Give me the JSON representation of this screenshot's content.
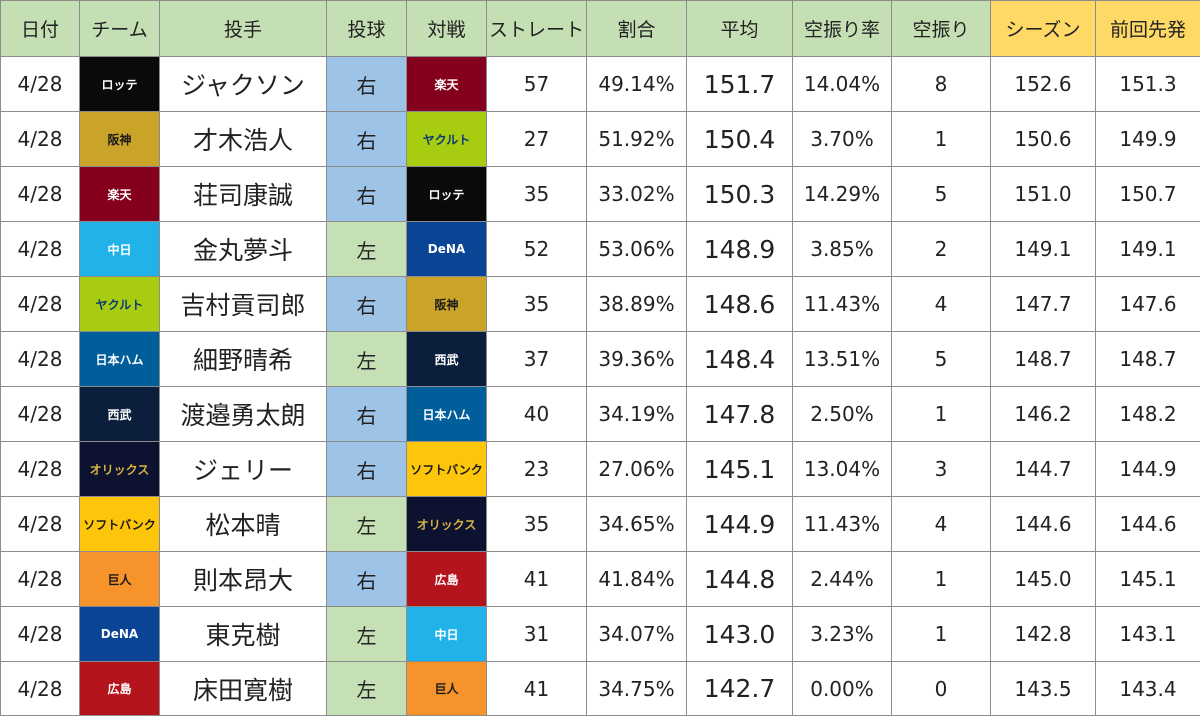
{
  "headers": [
    "日付",
    "チーム",
    "投手",
    "投球",
    "対戦",
    "ストレート",
    "割合",
    "平均",
    "空振り率",
    "空振り",
    "シーズン",
    "前回先発"
  ],
  "highlight_headers": [
    10,
    11
  ],
  "colors": {
    "header_bg": "#c5dfb4",
    "header_highlight_bg": "#fed966",
    "right_hand_bg": "#9dc3e6",
    "left_hand_bg": "#c5e0b4",
    "border": "#8c8c8c"
  },
  "teams": {
    "ロッテ": {
      "bg": "#0a0a0a",
      "fg": "#ffffff"
    },
    "阪神": {
      "bg": "#c9a429",
      "fg": "#1a1a1a"
    },
    "楽天": {
      "bg": "#85001c",
      "fg": "#ffffff"
    },
    "中日": {
      "bg": "#22b2ea",
      "fg": "#ffffff"
    },
    "ヤクルト": {
      "bg": "#a8cc10",
      "fg": "#0b3a75"
    },
    "日本ハム": {
      "bg": "#005e9a",
      "fg": "#ffffff"
    },
    "西武": {
      "bg": "#0b1f3c",
      "fg": "#ffffff"
    },
    "オリックス": {
      "bg": "#0c1230",
      "fg": "#d9b441"
    },
    "ソフトバンク": {
      "bg": "#fdc60a",
      "fg": "#1a1a1a"
    },
    "巨人": {
      "bg": "#f6932b",
      "fg": "#1a1a1a"
    },
    "DeNA": {
      "bg": "#0a4595",
      "fg": "#ffffff"
    },
    "広島": {
      "bg": "#b4141c",
      "fg": "#ffffff"
    }
  },
  "rows": [
    {
      "date": "4/28",
      "team": "ロッテ",
      "pitcher": "ジャクソン",
      "hand": "右",
      "opponent": "楽天",
      "straight": "57",
      "ratio": "49.14%",
      "avg": "151.7",
      "whiff_rate": "14.04%",
      "whiffs": "8",
      "season": "152.6",
      "prev": "151.3"
    },
    {
      "date": "4/28",
      "team": "阪神",
      "pitcher": "才木浩人",
      "hand": "右",
      "opponent": "ヤクルト",
      "straight": "27",
      "ratio": "51.92%",
      "avg": "150.4",
      "whiff_rate": "3.70%",
      "whiffs": "1",
      "season": "150.6",
      "prev": "149.9"
    },
    {
      "date": "4/28",
      "team": "楽天",
      "pitcher": "荘司康誠",
      "hand": "右",
      "opponent": "ロッテ",
      "straight": "35",
      "ratio": "33.02%",
      "avg": "150.3",
      "whiff_rate": "14.29%",
      "whiffs": "5",
      "season": "151.0",
      "prev": "150.7"
    },
    {
      "date": "4/28",
      "team": "中日",
      "pitcher": "金丸夢斗",
      "hand": "左",
      "opponent": "DeNA",
      "straight": "52",
      "ratio": "53.06%",
      "avg": "148.9",
      "whiff_rate": "3.85%",
      "whiffs": "2",
      "season": "149.1",
      "prev": "149.1"
    },
    {
      "date": "4/28",
      "team": "ヤクルト",
      "pitcher": "吉村貢司郎",
      "hand": "右",
      "opponent": "阪神",
      "straight": "35",
      "ratio": "38.89%",
      "avg": "148.6",
      "whiff_rate": "11.43%",
      "whiffs": "4",
      "season": "147.7",
      "prev": "147.6"
    },
    {
      "date": "4/28",
      "team": "日本ハム",
      "pitcher": "細野晴希",
      "hand": "左",
      "opponent": "西武",
      "straight": "37",
      "ratio": "39.36%",
      "avg": "148.4",
      "whiff_rate": "13.51%",
      "whiffs": "5",
      "season": "148.7",
      "prev": "148.7"
    },
    {
      "date": "4/28",
      "team": "西武",
      "pitcher": "渡邉勇太朗",
      "hand": "右",
      "opponent": "日本ハム",
      "straight": "40",
      "ratio": "34.19%",
      "avg": "147.8",
      "whiff_rate": "2.50%",
      "whiffs": "1",
      "season": "146.2",
      "prev": "148.2"
    },
    {
      "date": "4/28",
      "team": "オリックス",
      "pitcher": "ジェリー",
      "hand": "右",
      "opponent": "ソフトバンク",
      "straight": "23",
      "ratio": "27.06%",
      "avg": "145.1",
      "whiff_rate": "13.04%",
      "whiffs": "3",
      "season": "144.7",
      "prev": "144.9"
    },
    {
      "date": "4/28",
      "team": "ソフトバンク",
      "pitcher": "松本晴",
      "hand": "左",
      "opponent": "オリックス",
      "straight": "35",
      "ratio": "34.65%",
      "avg": "144.9",
      "whiff_rate": "11.43%",
      "whiffs": "4",
      "season": "144.6",
      "prev": "144.6"
    },
    {
      "date": "4/28",
      "team": "巨人",
      "pitcher": "則本昂大",
      "hand": "右",
      "opponent": "広島",
      "straight": "41",
      "ratio": "41.84%",
      "avg": "144.8",
      "whiff_rate": "2.44%",
      "whiffs": "1",
      "season": "145.0",
      "prev": "145.1"
    },
    {
      "date": "4/28",
      "team": "DeNA",
      "pitcher": "東克樹",
      "hand": "左",
      "opponent": "中日",
      "straight": "31",
      "ratio": "34.07%",
      "avg": "143.0",
      "whiff_rate": "3.23%",
      "whiffs": "1",
      "season": "142.8",
      "prev": "143.1"
    },
    {
      "date": "4/28",
      "team": "広島",
      "pitcher": "床田寛樹",
      "hand": "左",
      "opponent": "巨人",
      "straight": "41",
      "ratio": "34.75%",
      "avg": "142.7",
      "whiff_rate": "0.00%",
      "whiffs": "0",
      "season": "143.5",
      "prev": "143.4"
    }
  ]
}
